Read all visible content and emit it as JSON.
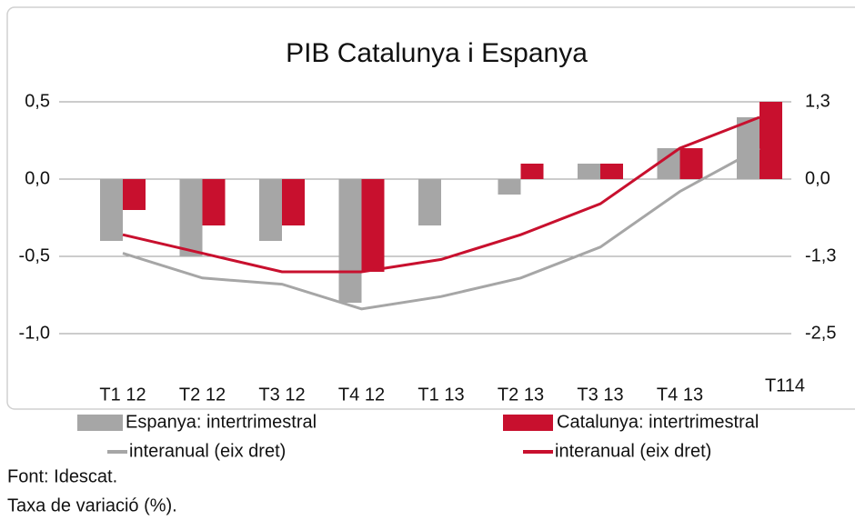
{
  "chart_data": {
    "type": "bar_line",
    "title": "PIB Catalunya i Espanya",
    "categories": [
      "T1 12",
      "T2 12",
      "T3 12",
      "T4 12",
      "T1 13",
      "T2 13",
      "T3 13",
      "T4 13",
      "T114"
    ],
    "series": [
      {
        "name": "Espanya: intertrimestral",
        "color": "#a6a6a6",
        "kind": "bar",
        "values": [
          -0.4,
          -0.5,
          -0.4,
          -0.8,
          -0.3,
          -0.1,
          0.1,
          0.2,
          0.4
        ]
      },
      {
        "name": "Catalunya: intertrimestral",
        "color": "#c8102e",
        "kind": "bar",
        "values": [
          -0.2,
          -0.3,
          -0.3,
          -0.6,
          0.0,
          0.1,
          0.1,
          0.2,
          0.5
        ]
      },
      {
        "name": "interanual (eix dret)",
        "color": "#a6a6a6",
        "kind": "line",
        "axis": "y2",
        "values": [
          -1.2,
          -1.6,
          -1.7,
          -2.1,
          -1.9,
          -1.6,
          -1.1,
          -0.2,
          0.5
        ]
      },
      {
        "name": "interanual (eix dret)",
        "color": "#c8102e",
        "kind": "line",
        "axis": "y2",
        "values": [
          -0.9,
          -1.2,
          -1.5,
          -1.5,
          -1.3,
          -0.9,
          -0.4,
          0.5,
          1.0
        ]
      }
    ],
    "ylim": [
      -1.0,
      0.5
    ],
    "yticks": [
      {
        "value": 0.5,
        "label": "0,5"
      },
      {
        "value": 0.0,
        "label": "0,0"
      },
      {
        "value": -0.5,
        "label": "-0,5"
      },
      {
        "value": -1.0,
        "label": "-1,0"
      }
    ],
    "y2lim": [
      -2.5,
      1.25
    ],
    "y2ticks": [
      {
        "value": 1.25,
        "label": "1,3"
      },
      {
        "value": 0.0,
        "label": "0,0"
      },
      {
        "value": -1.25,
        "label": "-1,3"
      },
      {
        "value": -2.5,
        "label": "-2,5"
      }
    ],
    "grid": true,
    "notes": [
      "Font: Idescat.",
      "Taxa de variació (%)."
    ]
  }
}
